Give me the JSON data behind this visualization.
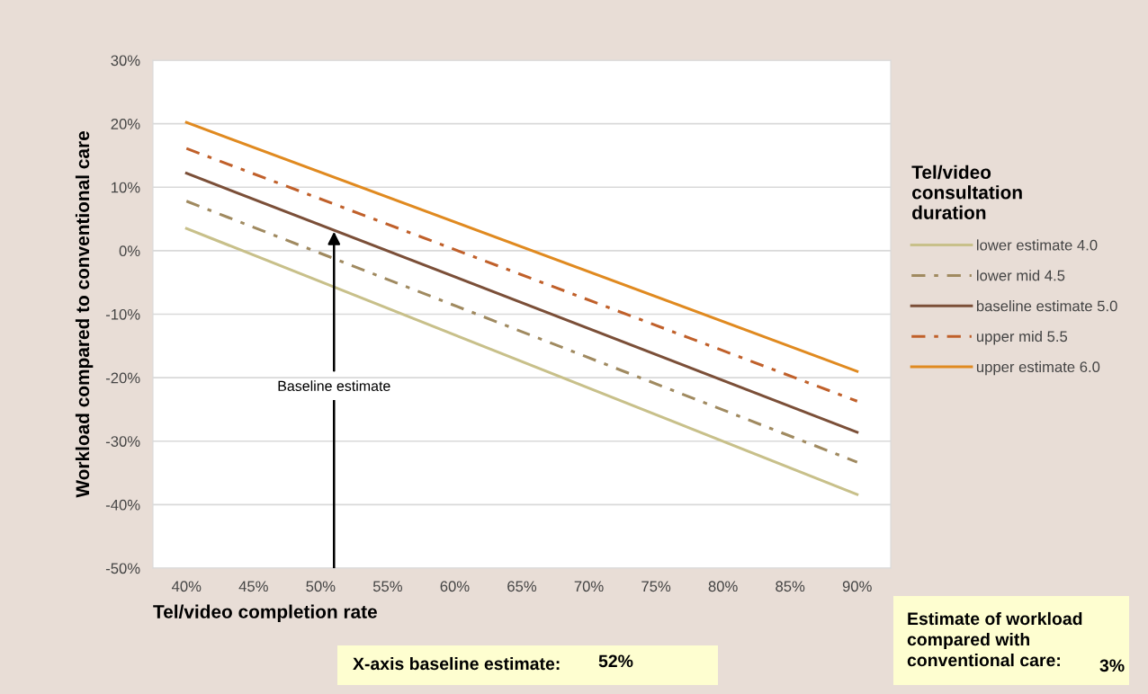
{
  "chart_data": {
    "type": "line",
    "xlabel": "Tel/video completion rate",
    "ylabel": "Workload compared to conventional care",
    "legend_title": "Tel/video consultation duration",
    "x": [
      40,
      90
    ],
    "series": [
      {
        "name": "lower estimate 4.0",
        "color": "#c8c08a",
        "line_style": "solid",
        "values": [
          3.5,
          -38.4
        ]
      },
      {
        "name": "lower mid 4.5",
        "color": "#a08a60",
        "line_style": "dashdot",
        "values": [
          7.8,
          -33.3
        ]
      },
      {
        "name": "baseline estimate 5.0",
        "color": "#7b4f38",
        "line_style": "solid",
        "values": [
          12.2,
          -28.6
        ]
      },
      {
        "name": "upper mid 5.5",
        "color": "#c0602a",
        "line_style": "dashdot",
        "values": [
          16.1,
          -23.7
        ]
      },
      {
        "name": "upper estimate 6.0",
        "color": "#e08a20",
        "line_style": "solid",
        "values": [
          20.2,
          -19.0
        ]
      }
    ],
    "xlim": [
      37.5,
      92.5
    ],
    "xticks": [
      {
        "value": 40,
        "label": "40%"
      },
      {
        "value": 45,
        "label": "45%"
      },
      {
        "value": 50,
        "label": "50%"
      },
      {
        "value": 55,
        "label": "55%"
      },
      {
        "value": 60,
        "label": "60%"
      },
      {
        "value": 65,
        "label": "65%"
      },
      {
        "value": 70,
        "label": "70%"
      },
      {
        "value": 75,
        "label": "75%"
      },
      {
        "value": 80,
        "label": "80%"
      },
      {
        "value": 85,
        "label": "85%"
      },
      {
        "value": 90,
        "label": "90%"
      }
    ],
    "ylim": [
      -50,
      30
    ],
    "yticks": [
      {
        "value": -50,
        "label": "-50%"
      },
      {
        "value": -40,
        "label": "-40%"
      },
      {
        "value": -30,
        "label": "-30%"
      },
      {
        "value": -20,
        "label": "-20%"
      },
      {
        "value": -10,
        "label": "-10%"
      },
      {
        "value": 0,
        "label": "0%"
      },
      {
        "value": 10,
        "label": "10%"
      },
      {
        "value": 20,
        "label": "20%"
      },
      {
        "value": 30,
        "label": "30%"
      }
    ],
    "grid": "y",
    "legend": "right",
    "marker": "none",
    "annotations": [
      {
        "text": "Baseline estimate",
        "x": 51,
        "y": 3
      },
      "X-axis baseline estimate:",
      "52%",
      "Estimate of workload compared with conventional care:",
      "3%"
    ]
  }
}
